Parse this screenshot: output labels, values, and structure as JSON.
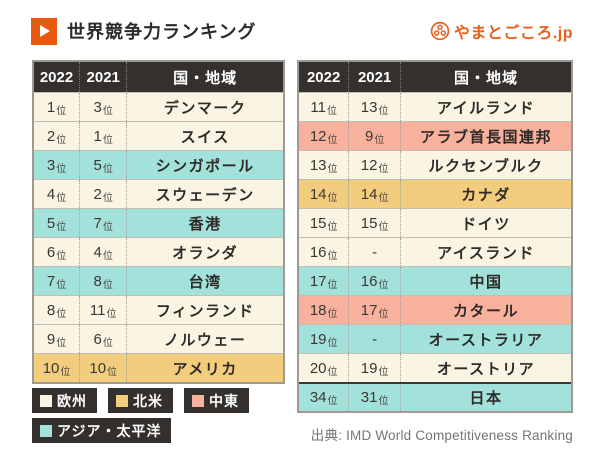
{
  "header": {
    "title": "世界競争力ランキング",
    "accent_color": "#E8580E"
  },
  "branding": {
    "logo_text": "やまとごころ.jp",
    "logo_color": "#E8601C"
  },
  "chart_data": {
    "type": "table",
    "title": "世界競争力ランキング",
    "columns": [
      "2022",
      "2021",
      "国・地域"
    ],
    "rank_suffix": "位",
    "tables": [
      {
        "name": "ranks-1-10",
        "rows": [
          {
            "rank_2022": "1",
            "rank_2021": "3",
            "name": "デンマーク",
            "region": "europe"
          },
          {
            "rank_2022": "2",
            "rank_2021": "1",
            "name": "スイス",
            "region": "europe"
          },
          {
            "rank_2022": "3",
            "rank_2021": "5",
            "name": "シンガポール",
            "region": "asia_pacific"
          },
          {
            "rank_2022": "4",
            "rank_2021": "2",
            "name": "スウェーデン",
            "region": "europe"
          },
          {
            "rank_2022": "5",
            "rank_2021": "7",
            "name": "香港",
            "region": "asia_pacific"
          },
          {
            "rank_2022": "6",
            "rank_2021": "4",
            "name": "オランダ",
            "region": "europe"
          },
          {
            "rank_2022": "7",
            "rank_2021": "8",
            "name": "台湾",
            "region": "asia_pacific"
          },
          {
            "rank_2022": "8",
            "rank_2021": "11",
            "name": "フィンランド",
            "region": "europe"
          },
          {
            "rank_2022": "9",
            "rank_2021": "6",
            "name": "ノルウェー",
            "region": "europe"
          },
          {
            "rank_2022": "10",
            "rank_2021": "10",
            "name": "アメリカ",
            "region": "north_america"
          }
        ]
      },
      {
        "name": "ranks-11-34",
        "rows": [
          {
            "rank_2022": "11",
            "rank_2021": "13",
            "name": "アイルランド",
            "region": "europe"
          },
          {
            "rank_2022": "12",
            "rank_2021": "9",
            "name": "アラブ首長国連邦",
            "region": "middle_east"
          },
          {
            "rank_2022": "13",
            "rank_2021": "12",
            "name": "ルクセンブルク",
            "region": "europe"
          },
          {
            "rank_2022": "14",
            "rank_2021": "14",
            "name": "カナダ",
            "region": "north_america"
          },
          {
            "rank_2022": "15",
            "rank_2021": "15",
            "name": "ドイツ",
            "region": "europe"
          },
          {
            "rank_2022": "16",
            "rank_2021": "-",
            "name": "アイスランド",
            "region": "europe"
          },
          {
            "rank_2022": "17",
            "rank_2021": "16",
            "name": "中国",
            "region": "asia_pacific"
          },
          {
            "rank_2022": "18",
            "rank_2021": "17",
            "name": "カタール",
            "region": "middle_east"
          },
          {
            "rank_2022": "19",
            "rank_2021": "-",
            "name": "オーストラリア",
            "region": "asia_pacific"
          },
          {
            "rank_2022": "20",
            "rank_2021": "19",
            "name": "オーストリア",
            "region": "europe"
          },
          {
            "rank_2022": "34",
            "rank_2021": "31",
            "name": "日本",
            "region": "asia_pacific",
            "divider_above": true
          }
        ]
      }
    ],
    "legend": [
      {
        "label": "欧州",
        "region": "europe"
      },
      {
        "label": "北米",
        "region": "north_america"
      },
      {
        "label": "中東",
        "region": "middle_east"
      },
      {
        "label": "アジア・太平洋",
        "region": "asia_pacific"
      }
    ],
    "source": "出典: IMD World Competitiveness Ranking"
  },
  "region_colors": {
    "europe": "#FAF4E3",
    "north_america": "#F3CD7E",
    "middle_east": "#F8B19C",
    "asia_pacific": "#A3E1DB"
  },
  "colors": {
    "table_header_bg": "#34302D",
    "legend_chip_bg": "#34302D",
    "text_dark": "#2D2A28",
    "source_text": "#767472",
    "table_border": "#9D9A95",
    "row_divider": "#C2BEB7",
    "japan_divider": "#3B3835"
  }
}
